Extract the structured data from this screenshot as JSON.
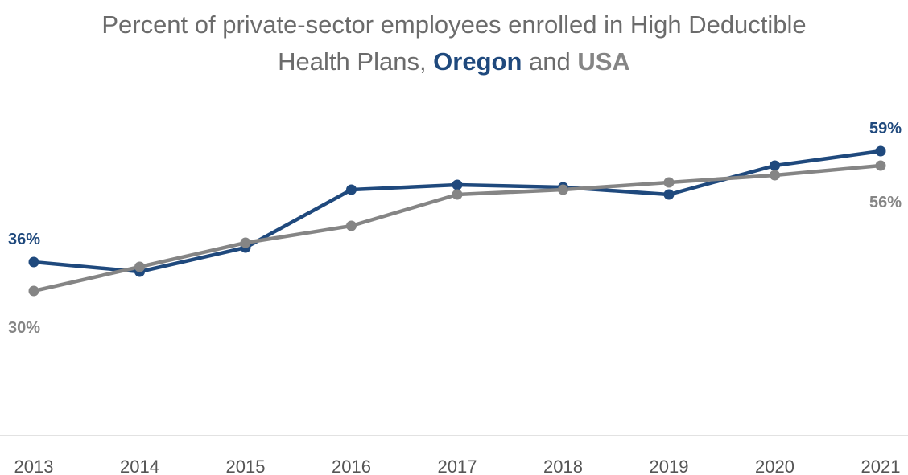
{
  "title": {
    "line1": "Percent of private-sector employees enrolled in High Deductible",
    "line2_prefix": "Health Plans, ",
    "line2_series1": "Oregon",
    "line2_mid": " and ",
    "line2_series2": "USA"
  },
  "chart_data": {
    "type": "line",
    "title": "Percent of private-sector employees enrolled in High Deductible Health Plans, Oregon and USA",
    "xlabel": "",
    "ylabel": "",
    "x": [
      "2013",
      "2014",
      "2015",
      "2016",
      "2017",
      "2018",
      "2019",
      "2020",
      "2021"
    ],
    "ylim": [
      0,
      70
    ],
    "grid": false,
    "legend": "none",
    "series": [
      {
        "name": "Oregon",
        "color": "#1f497d",
        "values": [
          36,
          34,
          39,
          51,
          52,
          51.5,
          50,
          56,
          59
        ],
        "labels": [
          {
            "index": 0,
            "text": "36%",
            "position": "above"
          },
          {
            "index": 8,
            "text": "59%",
            "position": "above"
          }
        ]
      },
      {
        "name": "USA",
        "color": "#858585",
        "values": [
          30,
          35,
          40,
          43.5,
          50,
          51,
          52.5,
          54,
          56
        ],
        "labels": [
          {
            "index": 0,
            "text": "30%",
            "position": "below"
          },
          {
            "index": 8,
            "text": "56%",
            "position": "below"
          }
        ]
      }
    ]
  }
}
